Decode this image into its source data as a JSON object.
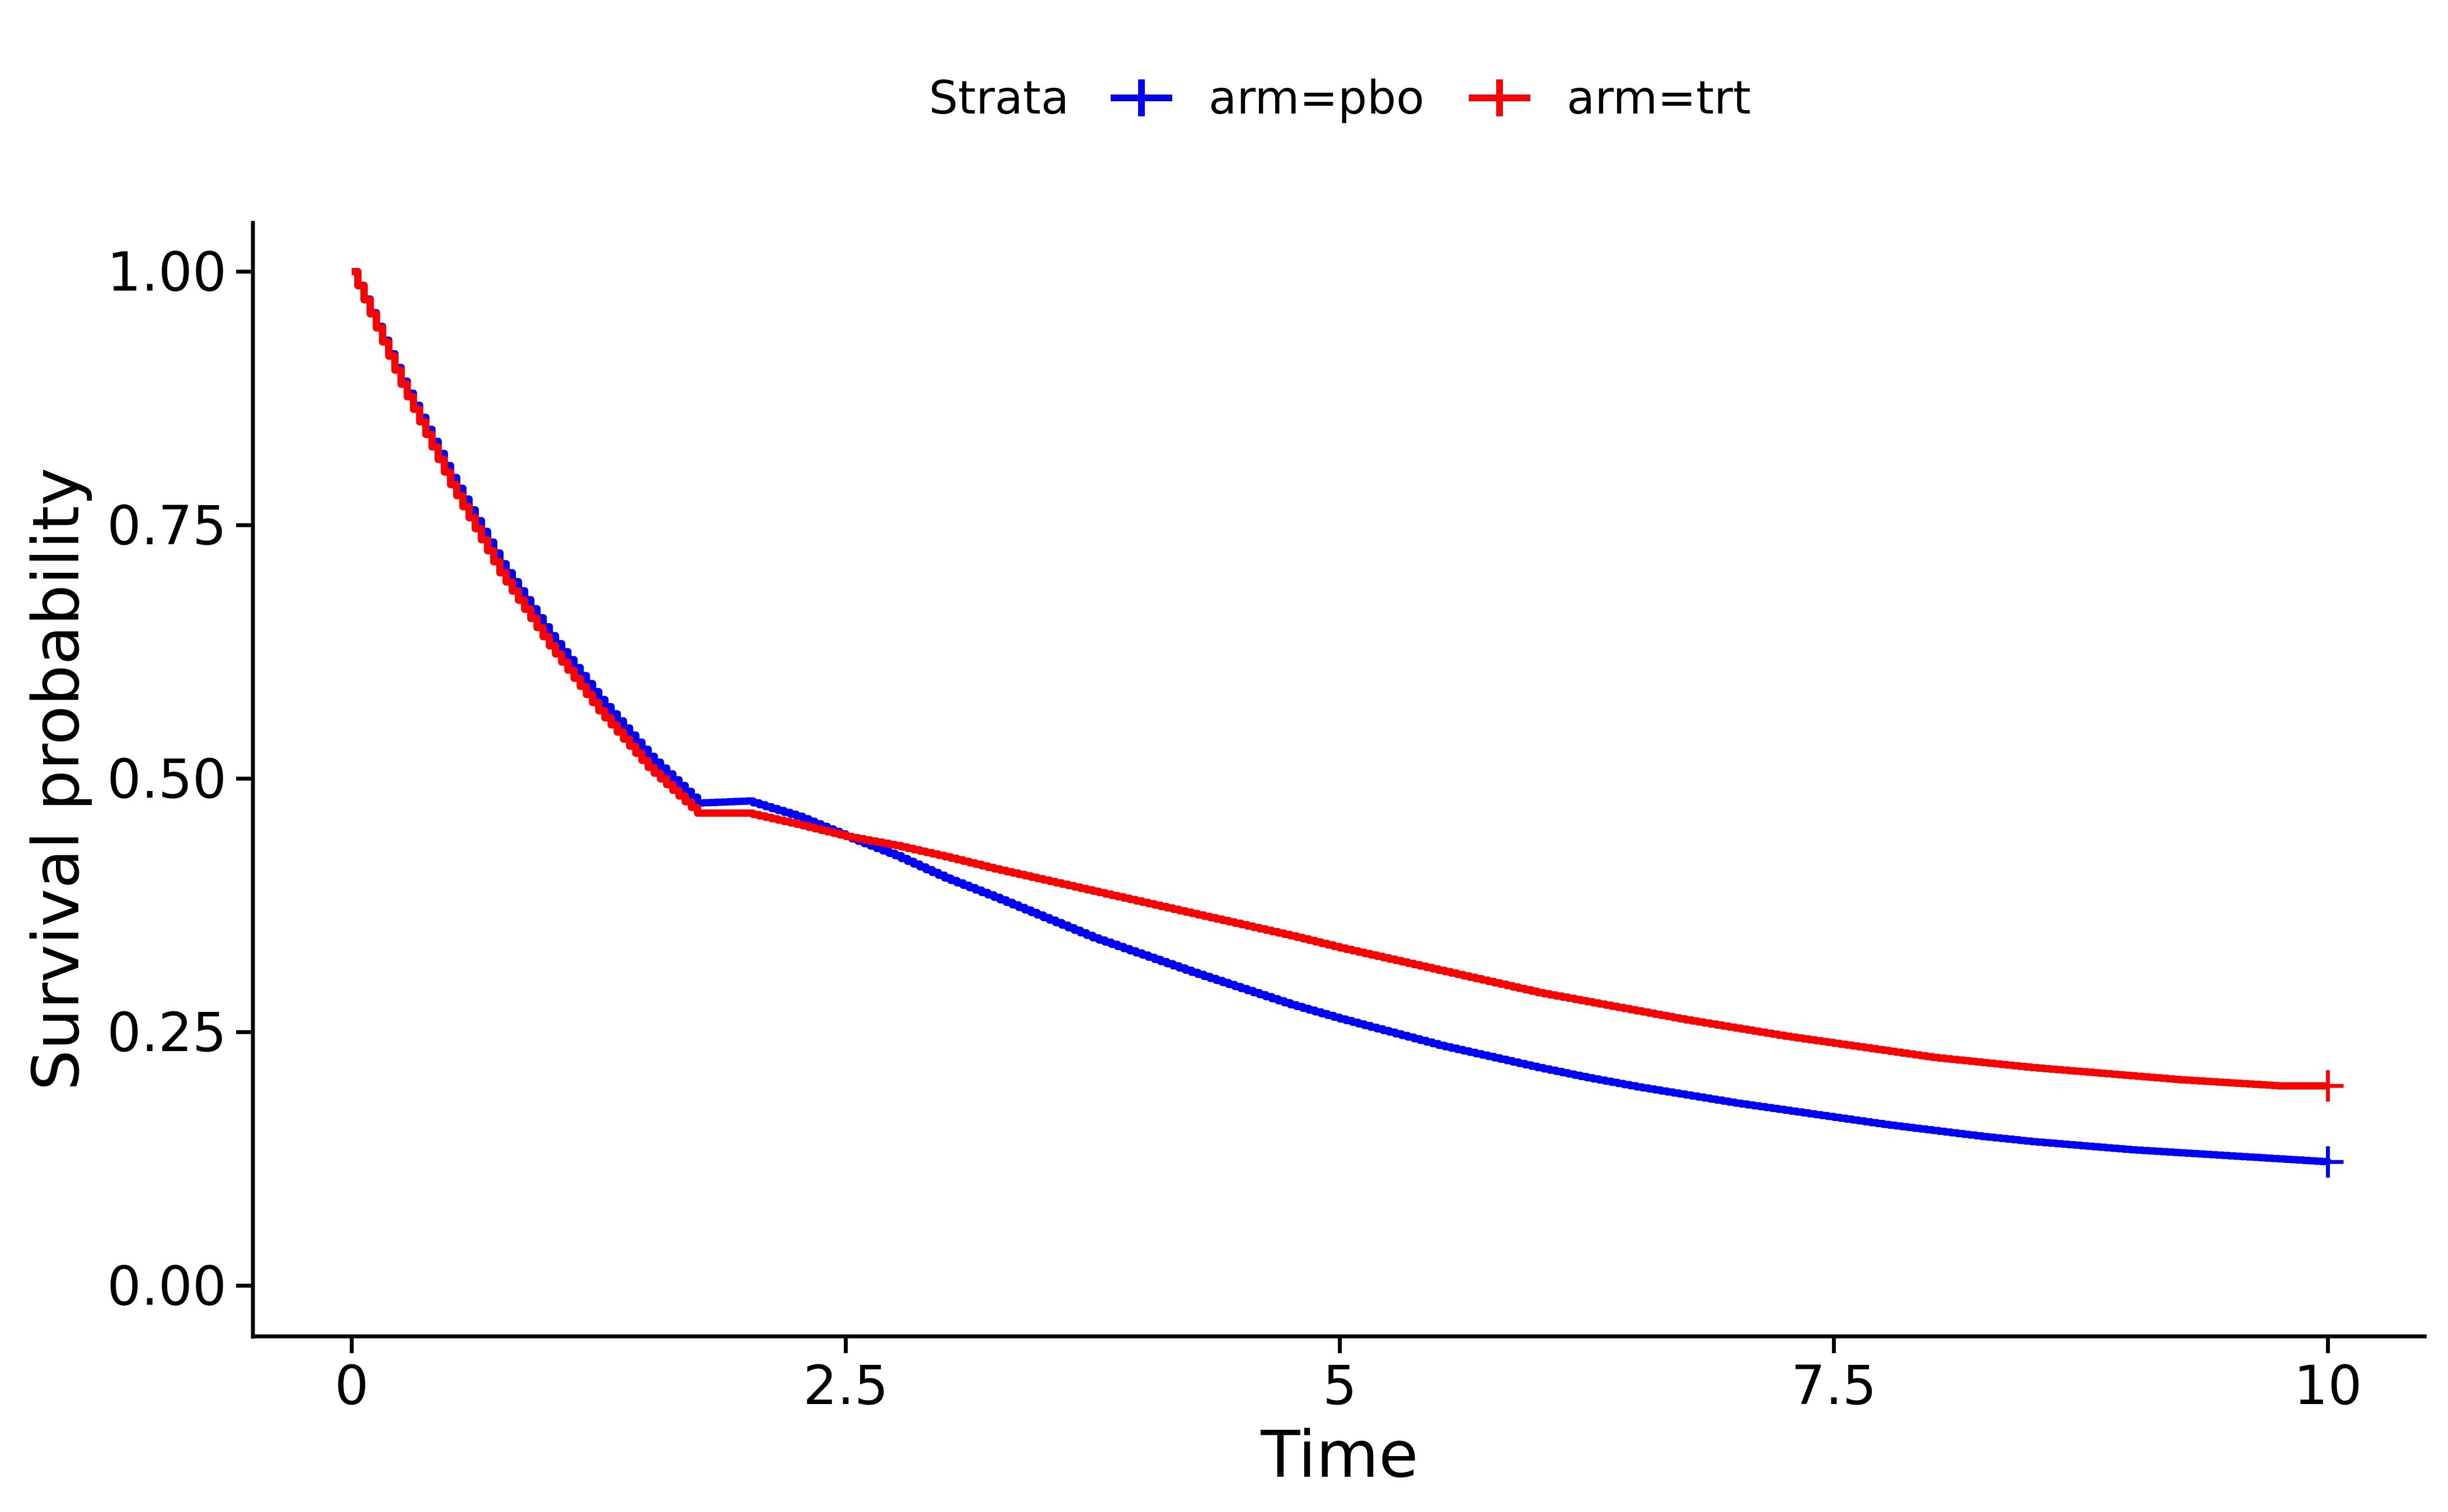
{
  "chart_data": {
    "type": "line",
    "curve": "step",
    "xlabel": "Time",
    "ylabel": "Survival probability",
    "xlim": [
      -0.5,
      10.5
    ],
    "ylim": [
      -0.05,
      1.05
    ],
    "x_ticks": [
      0,
      2.5,
      5,
      7.5,
      10
    ],
    "x_tick_labels": [
      "0",
      "2.5",
      "5",
      "7.5",
      "10"
    ],
    "y_ticks": [
      0,
      0.25,
      0.5,
      0.75,
      1.0
    ],
    "y_tick_labels": [
      "0.00",
      "0.25",
      "0.50",
      "0.75",
      "1.00"
    ],
    "grid": false,
    "legend": {
      "title": "Strata",
      "position": "top",
      "entries": [
        "arm=pbo",
        "arm=trt"
      ]
    },
    "series": [
      {
        "name": "arm=pbo",
        "color": "#0000ff",
        "censor_mark": "plus",
        "x": [
          0,
          0.25,
          0.5,
          0.75,
          1.0,
          1.25,
          1.5,
          1.75,
          2.0,
          2.25,
          2.5,
          2.75,
          3.0,
          3.25,
          3.5,
          3.75,
          4.0,
          4.25,
          4.5,
          4.75,
          5.0,
          5.25,
          5.5,
          5.75,
          6.0,
          6.25,
          6.5,
          6.75,
          7.0,
          7.25,
          7.5,
          7.75,
          8.0,
          8.25,
          8.5,
          8.75,
          9.0,
          9.25,
          9.5,
          9.75,
          10.0
        ],
        "y": [
          1.0,
          0.892,
          0.797,
          0.712,
          0.641,
          0.578,
          0.522,
          0.476,
          0.478,
          0.463,
          0.443,
          0.424,
          0.402,
          0.383,
          0.363,
          0.343,
          0.326,
          0.309,
          0.293,
          0.277,
          0.263,
          0.25,
          0.237,
          0.226,
          0.215,
          0.205,
          0.196,
          0.188,
          0.18,
          0.173,
          0.166,
          0.159,
          0.153,
          0.147,
          0.142,
          0.138,
          0.134,
          0.131,
          0.128,
          0.125,
          0.122
        ]
      },
      {
        "name": "arm=trt",
        "color": "#ff0000",
        "censor_mark": "plus",
        "x": [
          0,
          0.25,
          0.5,
          0.75,
          1.0,
          1.25,
          1.5,
          1.75,
          2.0,
          2.25,
          2.5,
          2.75,
          3.0,
          3.25,
          3.5,
          3.75,
          4.0,
          4.25,
          4.5,
          4.75,
          5.0,
          5.25,
          5.5,
          5.75,
          6.0,
          6.25,
          6.5,
          6.75,
          7.0,
          7.25,
          7.5,
          7.75,
          8.0,
          8.25,
          8.5,
          8.75,
          9.0,
          9.25,
          9.5,
          9.75,
          10.0
        ],
        "y": [
          1.0,
          0.889,
          0.79,
          0.703,
          0.631,
          0.567,
          0.511,
          0.466,
          0.466,
          0.455,
          0.443,
          0.434,
          0.423,
          0.411,
          0.4,
          0.389,
          0.378,
          0.367,
          0.356,
          0.345,
          0.333,
          0.322,
          0.311,
          0.3,
          0.289,
          0.28,
          0.271,
          0.262,
          0.254,
          0.246,
          0.239,
          0.232,
          0.225,
          0.22,
          0.215,
          0.211,
          0.207,
          0.203,
          0.2,
          0.197,
          0.197
        ]
      }
    ]
  }
}
